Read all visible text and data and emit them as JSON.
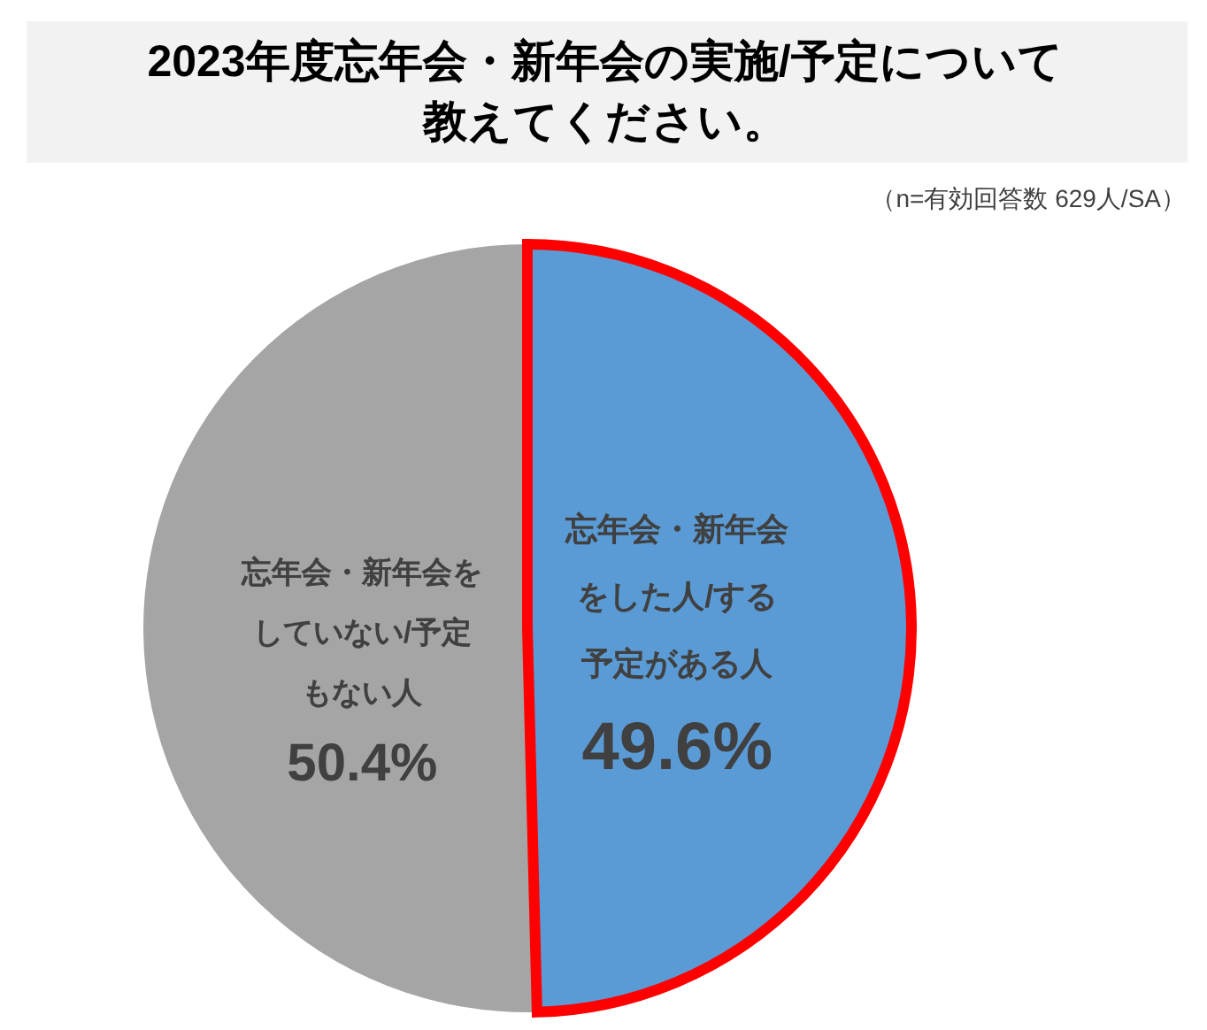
{
  "chart_data": {
    "type": "pie",
    "title": "2023年度忘年会・新年会の実施/予定について教えてください。",
    "categories": [
      "忘年会・新年会をした人/する予定がある人",
      "忘年会・新年会をしていない/予定もない人"
    ],
    "values": [
      49.6,
      50.4
    ],
    "colors": [
      "#5b9bd5",
      "#a5a5a5"
    ],
    "value_labels": [
      "49.6%",
      "50.4%"
    ],
    "annotations": [
      "（n=有効回答数 629人/SA）"
    ]
  }
}
